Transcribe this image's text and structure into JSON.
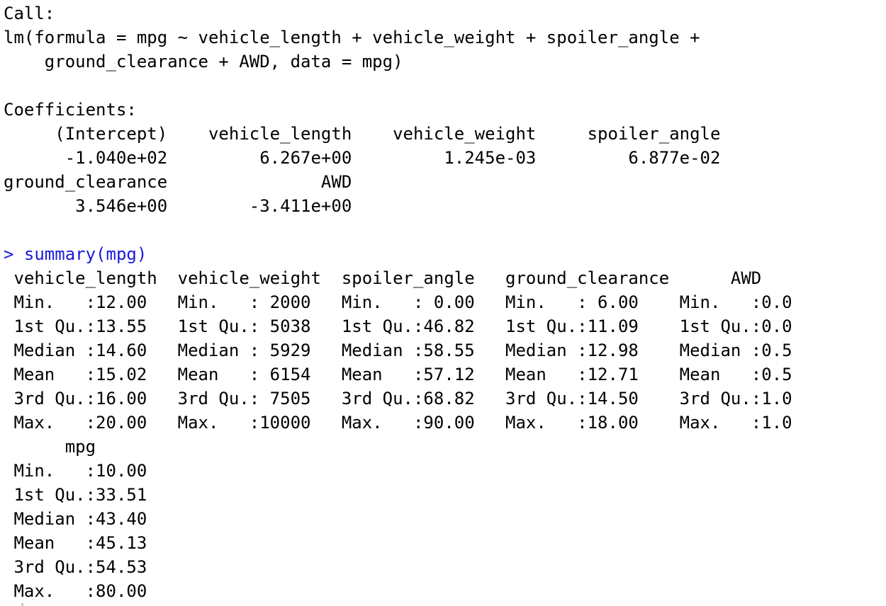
{
  "console": {
    "lines": [
      {
        "text": "Call:",
        "kind": "output"
      },
      {
        "text": "lm(formula = mpg ~ vehicle_length + vehicle_weight + spoiler_angle +",
        "kind": "output"
      },
      {
        "text": "    ground_clearance + AWD, data = mpg)",
        "kind": "output"
      },
      {
        "text": "",
        "kind": "output"
      },
      {
        "text": "Coefficients:",
        "kind": "output"
      },
      {
        "text": "     (Intercept)    vehicle_length    vehicle_weight     spoiler_angle",
        "kind": "output"
      },
      {
        "text": "      -1.040e+02         6.267e+00         1.245e-03         6.877e-02",
        "kind": "output"
      },
      {
        "text": "ground_clearance               AWD",
        "kind": "output"
      },
      {
        "text": "       3.546e+00        -3.411e+00",
        "kind": "output"
      },
      {
        "text": "",
        "kind": "output"
      },
      {
        "text": "> summary(mpg)",
        "kind": "command"
      },
      {
        "text": " vehicle_length  vehicle_weight  spoiler_angle   ground_clearance      AWD",
        "kind": "output"
      },
      {
        "text": " Min.   :12.00   Min.   : 2000   Min.   : 0.00   Min.   : 6.00    Min.   :0.0",
        "kind": "output"
      },
      {
        "text": " 1st Qu.:13.55   1st Qu.: 5038   1st Qu.:46.82   1st Qu.:11.09    1st Qu.:0.0",
        "kind": "output"
      },
      {
        "text": " Median :14.60   Median : 5929   Median :58.55   Median :12.98    Median :0.5",
        "kind": "output"
      },
      {
        "text": " Mean   :15.02   Mean   : 6154   Mean   :57.12   Mean   :12.71    Mean   :0.5",
        "kind": "output"
      },
      {
        "text": " 3rd Qu.:16.00   3rd Qu.: 7505   3rd Qu.:68.82   3rd Qu.:14.50    3rd Qu.:1.0",
        "kind": "output"
      },
      {
        "text": " Max.   :20.00   Max.   :10000   Max.   :90.00   Max.   :18.00    Max.   :1.0",
        "kind": "output"
      },
      {
        "text": "      mpg",
        "kind": "output"
      },
      {
        "text": " Min.   :10.00",
        "kind": "output"
      },
      {
        "text": " 1st Qu.:33.51",
        "kind": "output"
      },
      {
        "text": " Median :43.40",
        "kind": "output"
      },
      {
        "text": " Mean   :45.13",
        "kind": "output"
      },
      {
        "text": " 3rd Qu.:54.53",
        "kind": "output"
      },
      {
        "text": " Max.   :80.00",
        "kind": "output"
      }
    ]
  },
  "colors": {
    "background": "#ffffff",
    "output_text": "#000000",
    "command_text": "#1a1adb"
  }
}
